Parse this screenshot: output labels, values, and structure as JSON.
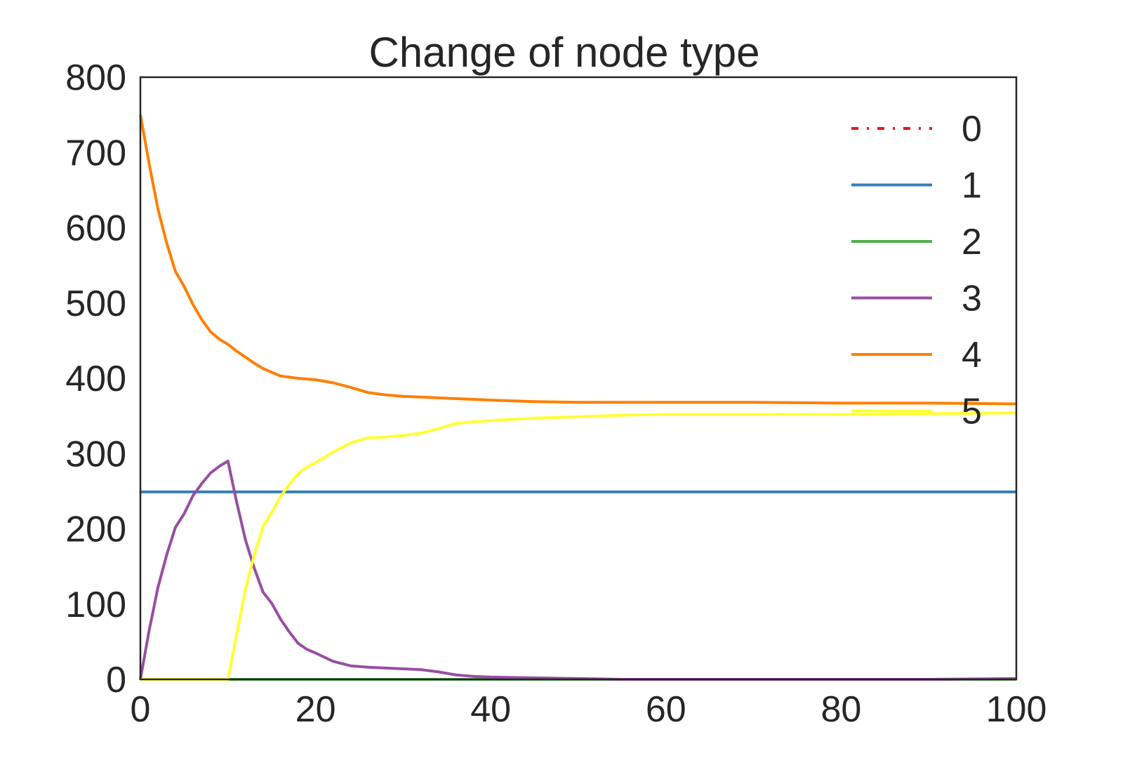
{
  "chart_data": {
    "type": "line",
    "title": "Change of node type",
    "xlabel": "",
    "ylabel": "",
    "xlim": [
      0,
      100
    ],
    "ylim": [
      0,
      800
    ],
    "x_ticks": [
      0,
      20,
      40,
      60,
      80,
      100
    ],
    "y_ticks": [
      0,
      100,
      200,
      300,
      400,
      500,
      600,
      700,
      800
    ],
    "x_tick_labels": [
      "0",
      "20",
      "40",
      "60",
      "80",
      "100"
    ],
    "y_tick_labels": [
      "0",
      "100",
      "200",
      "300",
      "400",
      "500",
      "600",
      "700",
      "800"
    ],
    "grid": false,
    "legend_position": "top-right",
    "series": [
      {
        "name": "0",
        "color": "#e41a1c",
        "style": "dashdot",
        "x": [
          0,
          100
        ],
        "y": [
          0,
          0
        ]
      },
      {
        "name": "1",
        "color": "#377eb8",
        "style": "solid",
        "x": [
          0,
          100
        ],
        "y": [
          249,
          249
        ]
      },
      {
        "name": "2",
        "color": "#4daf4a",
        "style": "solid",
        "x": [
          0,
          100
        ],
        "y": [
          0,
          0
        ]
      },
      {
        "name": "3",
        "color": "#984ea3",
        "style": "solid",
        "x": [
          0,
          1,
          2,
          3,
          4,
          5,
          6,
          7,
          8,
          9,
          10,
          11,
          12,
          13,
          14,
          15,
          16,
          17,
          18,
          19,
          20,
          22,
          24,
          26,
          28,
          30,
          32,
          34,
          36,
          38,
          40,
          45,
          50,
          55,
          60,
          70,
          80,
          90,
          100
        ],
        "y": [
          0,
          65,
          122,
          165,
          202,
          220,
          244,
          260,
          274,
          283,
          290,
          235,
          185,
          148,
          116,
          101,
          80,
          63,
          48,
          40,
          35,
          24,
          18,
          16,
          15,
          14,
          13,
          10,
          6,
          4,
          3,
          2,
          1,
          0,
          0,
          0,
          0,
          0,
          1
        ]
      },
      {
        "name": "4",
        "color": "#ff7f00",
        "style": "solid",
        "x": [
          0,
          1,
          2,
          3,
          4,
          5,
          6,
          7,
          8,
          9,
          10,
          11,
          12,
          13,
          14,
          16,
          18,
          20,
          22,
          24,
          26,
          28,
          30,
          32,
          34,
          36,
          38,
          40,
          45,
          50,
          60,
          70,
          80,
          90,
          100
        ],
        "y": [
          750,
          685,
          625,
          580,
          542,
          522,
          498,
          478,
          462,
          452,
          445,
          436,
          428,
          420,
          413,
          403,
          400,
          398,
          394,
          388,
          381,
          378,
          376,
          375,
          374,
          373,
          372,
          371,
          369,
          368,
          368,
          368,
          367,
          367,
          366
        ]
      },
      {
        "name": "5",
        "color": "#ffff33",
        "style": "solid",
        "x": [
          0,
          5,
          10,
          11,
          12,
          13,
          14,
          15,
          16,
          17,
          18,
          19,
          20,
          22,
          24,
          26,
          28,
          30,
          32,
          34,
          36,
          38,
          40,
          45,
          50,
          55,
          60,
          70,
          80,
          90,
          100
        ],
        "y": [
          0,
          0,
          0,
          60,
          120,
          165,
          203,
          222,
          243,
          259,
          273,
          282,
          288,
          302,
          314,
          321,
          322,
          324,
          327,
          333,
          340,
          342,
          344,
          347,
          349,
          351,
          352,
          352,
          352,
          353,
          354
        ]
      }
    ]
  }
}
